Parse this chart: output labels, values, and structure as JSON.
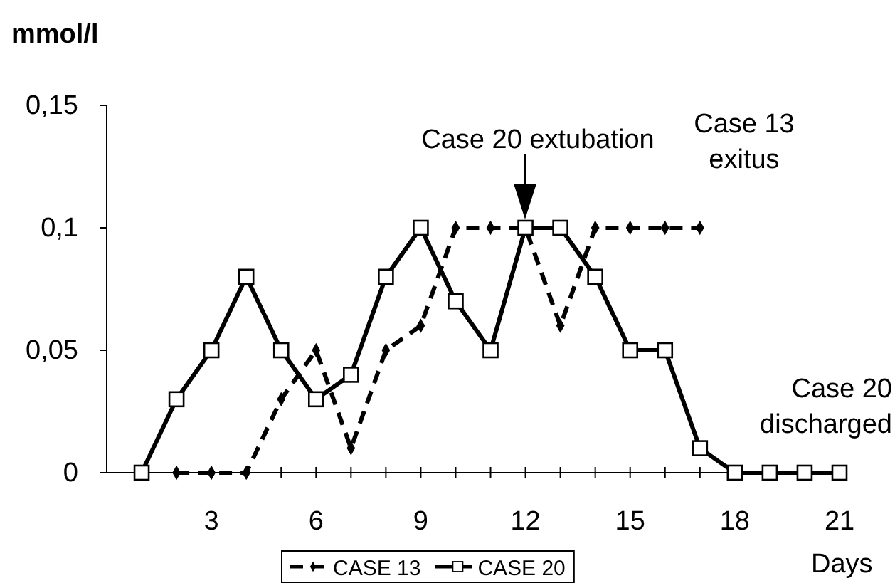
{
  "chart_data": {
    "type": "line",
    "ylabel": "mmol/l",
    "xlabel": "Days",
    "xlim": [
      0,
      21
    ],
    "xticks": [
      {
        "value": 1,
        "label": null
      },
      {
        "value": 2,
        "label": null
      },
      3,
      {
        "value": 4,
        "label": null
      },
      {
        "value": 5,
        "label": null
      },
      6,
      {
        "value": 7,
        "label": null
      },
      {
        "value": 8,
        "label": null
      },
      9,
      {
        "value": 10,
        "label": null
      },
      {
        "value": 11,
        "label": null
      },
      12,
      {
        "value": 13,
        "label": null
      },
      {
        "value": 14,
        "label": null
      },
      15,
      {
        "value": 16,
        "label": null
      },
      {
        "value": 17,
        "label": null
      },
      18,
      {
        "value": 19,
        "label": null
      },
      {
        "value": 20,
        "label": null
      },
      21
    ],
    "ylim": [
      0,
      0.15
    ],
    "yticks": [
      {
        "value": 0,
        "label": "0"
      },
      {
        "value": 0.05,
        "label": "0,05"
      },
      {
        "value": 0.1,
        "label": "0,1"
      },
      {
        "value": 0.15,
        "label": "0,15"
      }
    ],
    "legend": "bottom",
    "grid": false,
    "series": [
      {
        "name": "CASE 13",
        "color": "#000000",
        "marker": "diamond",
        "line_style": "dashed",
        "x": [
          2,
          3,
          4,
          5,
          6,
          7,
          8,
          9,
          10,
          11,
          12,
          13,
          14,
          15,
          16,
          17
        ],
        "values": [
          0,
          0,
          0,
          0.03,
          0.05,
          0.01,
          0.05,
          0.06,
          0.1,
          0.1,
          0.1,
          0.06,
          0.1,
          0.1,
          0.1,
          0.1
        ]
      },
      {
        "name": "CASE 20",
        "color": "#000000",
        "marker": "square",
        "line_style": "solid",
        "x": [
          1,
          2,
          3,
          4,
          5,
          6,
          7,
          8,
          9,
          10,
          11,
          12,
          13,
          14,
          15,
          16,
          17,
          18,
          19,
          20,
          21
        ],
        "values": [
          0,
          0.03,
          0.05,
          0.08,
          0.05,
          0.03,
          0.04,
          0.08,
          0.1,
          0.07,
          0.05,
          0.1,
          0.1,
          0.08,
          0.05,
          0.05,
          0.01,
          0,
          0,
          0,
          0
        ]
      }
    ],
    "annotations": [
      "Case 20 extubation",
      "Case 13 exitus",
      "Case 20 discharged"
    ]
  }
}
